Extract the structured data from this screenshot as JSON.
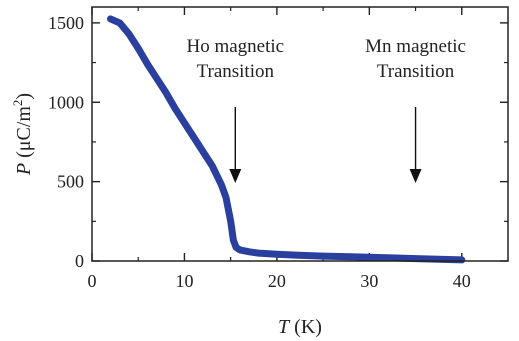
{
  "chart_data": {
    "type": "line",
    "xlabel": {
      "var": "T",
      "unit": " (K)"
    },
    "ylabel": {
      "var": "P",
      "unit": " (μC/m",
      "sup": "2",
      "close": ")"
    },
    "xlim": [
      0,
      45
    ],
    "ylim": [
      0,
      1600
    ],
    "xticks": [
      "0",
      "10",
      "20",
      "30",
      "40"
    ],
    "yticks": [
      "0",
      "500",
      "1000",
      "1500"
    ],
    "grid": false,
    "series": [
      {
        "color": "#2b3f9e",
        "x": [
          2,
          3,
          4,
          5,
          6,
          7,
          8,
          9,
          10,
          11,
          12,
          13,
          14,
          14.5,
          15,
          15.3,
          15.6,
          16,
          17,
          18,
          20,
          22,
          25,
          28,
          30,
          32,
          35,
          38,
          40
        ],
        "y": [
          1525,
          1500,
          1430,
          1340,
          1240,
          1150,
          1060,
          960,
          870,
          780,
          690,
          600,
          480,
          400,
          250,
          130,
          85,
          70,
          58,
          50,
          42,
          37,
          31,
          27,
          24,
          20,
          15,
          10,
          7
        ]
      }
    ],
    "annotations": [
      {
        "lines": [
          "Ho magnetic",
          "Transition"
        ],
        "arrow_x": 15.5
      },
      {
        "lines": [
          "Mn magnetic",
          "Transition"
        ],
        "arrow_x": 35
      }
    ]
  }
}
